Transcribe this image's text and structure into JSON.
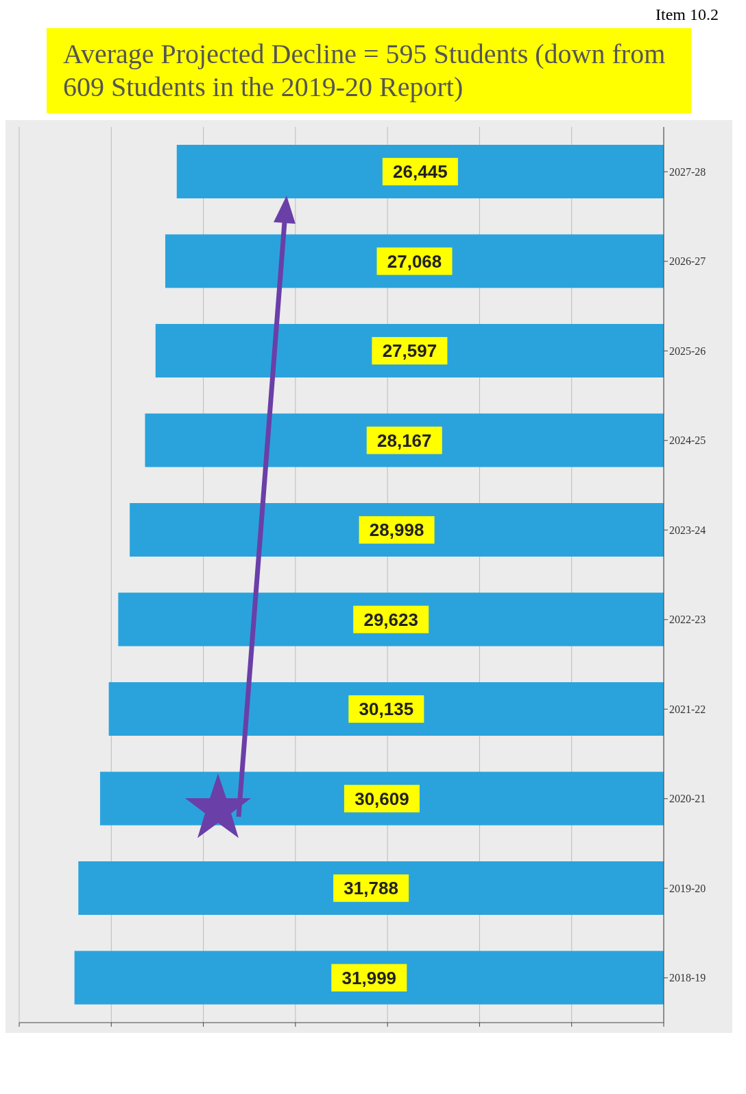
{
  "chart_data": {
    "type": "bar",
    "orientation": "horizontal",
    "title": "Average Projected Decline = 595 Students (down from 609 Students in the 2019-20 Report)",
    "annotations": [
      "Item 10.2"
    ],
    "categories": [
      "2027-28",
      "2026-27",
      "2025-26",
      "2024-25",
      "2023-24",
      "2022-23",
      "2021-22",
      "2020-21",
      "2019-20",
      "2018-19"
    ],
    "values": [
      26445,
      27068,
      27597,
      28167,
      28998,
      29623,
      30135,
      30609,
      31788,
      31999
    ],
    "value_labels": [
      "26,445",
      "27,068",
      "27,597",
      "28,167",
      "28,998",
      "29,623",
      "30,135",
      "30,609",
      "31,788",
      "31,999"
    ],
    "color": "#2aa3dc",
    "xlim": [
      35000,
      0
    ],
    "xticks": [
      {
        "value": 0,
        "label": null
      },
      {
        "value": 5000,
        "label": null
      },
      {
        "value": 10000,
        "label": null
      },
      {
        "value": 15000,
        "label": null
      },
      {
        "value": 20000,
        "label": null
      },
      {
        "value": 25000,
        "label": null
      },
      {
        "value": 30000,
        "label": null
      },
      {
        "value": 35000,
        "label": null
      }
    ],
    "grid": "x",
    "tick_labels": "y",
    "legend": false
  }
}
